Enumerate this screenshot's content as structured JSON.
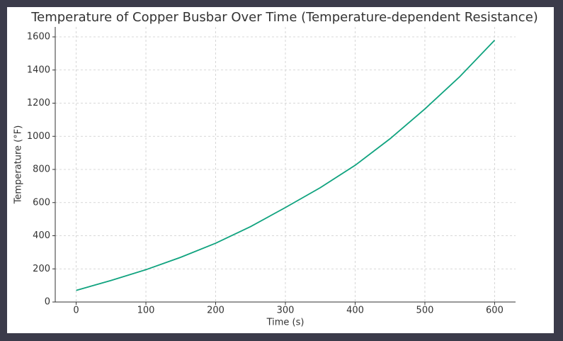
{
  "chart_data": {
    "type": "line",
    "title": "Temperature of Copper Busbar Over Time (Temperature-dependent Resistance)",
    "x_label": "Time (s)",
    "y_label": "Temperature (°F)",
    "x": [
      0,
      50,
      100,
      150,
      200,
      250,
      300,
      350,
      400,
      450,
      500,
      550,
      600
    ],
    "series": [
      {
        "name": "Temperature",
        "color": "#10a37f",
        "values": [
          70,
          130,
          195,
          270,
          355,
          455,
          570,
          690,
          825,
          985,
          1165,
          1360,
          1580
        ]
      }
    ],
    "xlim": [
      -30,
      630
    ],
    "ylim": [
      0,
      1660
    ],
    "xticks": [
      0,
      100,
      200,
      300,
      400,
      500,
      600
    ],
    "yticks": [
      0,
      200,
      400,
      600,
      800,
      1000,
      1200,
      1400,
      1600
    ],
    "grid": true
  }
}
